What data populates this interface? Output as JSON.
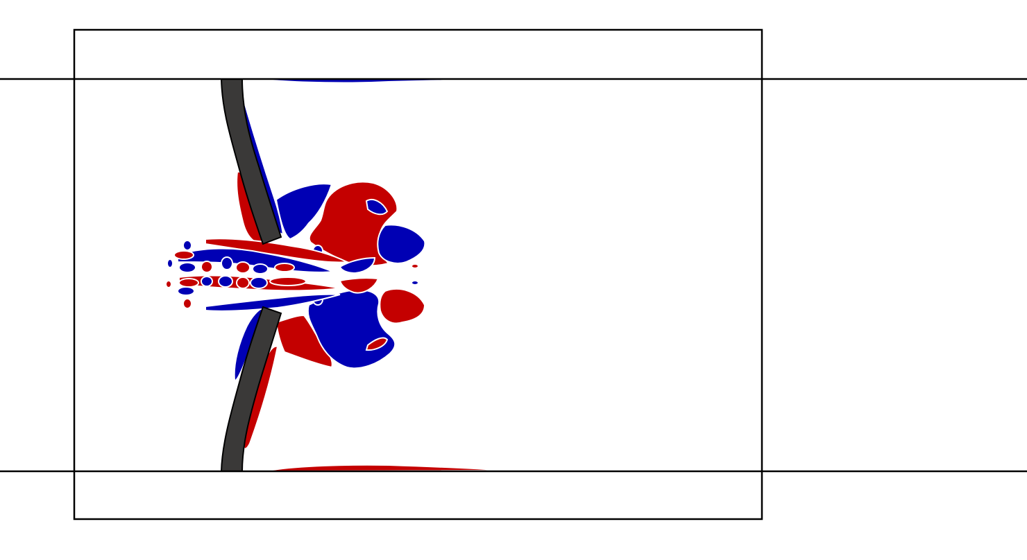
{
  "colors": {
    "background": "#ffffff",
    "frame": "#000000",
    "leaflet": "#3a3938",
    "positive_vorticity": "#c40000",
    "negative_vorticity": "#0000b4"
  },
  "icons": {
    "upper_leaflet": "curved-plate-icon",
    "lower_leaflet": "curved-plate-icon"
  }
}
